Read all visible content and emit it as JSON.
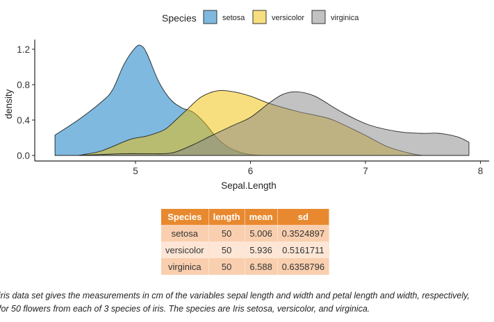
{
  "chart_data": {
    "type": "area",
    "subtype": "density",
    "xlabel": "Sepal.Length",
    "ylabel": "density",
    "xlim": [
      4.0,
      8.1
    ],
    "ylim": [
      -0.04,
      1.28
    ],
    "xticks": [
      5,
      6,
      7,
      8
    ],
    "yticks": [
      "0.0",
      "0.4",
      "0.8",
      "1.2"
    ],
    "grid": false,
    "legend": {
      "title": "Species",
      "position": "top"
    },
    "fill_alpha": 0.5,
    "series": [
      {
        "name": "setosa",
        "color": "#0073C2",
        "points": [
          [
            4.3,
            0.23
          ],
          [
            4.5,
            0.4
          ],
          [
            4.7,
            0.6
          ],
          [
            4.8,
            0.74
          ],
          [
            4.9,
            1.03
          ],
          [
            5.0,
            1.22
          ],
          [
            5.05,
            1.24
          ],
          [
            5.1,
            1.15
          ],
          [
            5.2,
            0.84
          ],
          [
            5.3,
            0.64
          ],
          [
            5.4,
            0.54
          ],
          [
            5.5,
            0.49
          ],
          [
            5.6,
            0.37
          ],
          [
            5.7,
            0.21
          ],
          [
            5.8,
            0.1
          ],
          [
            5.9,
            0.04
          ],
          [
            6.0,
            0.01
          ],
          [
            6.1,
            0.0
          ]
        ]
      },
      {
        "name": "versicolor",
        "color": "#EFC000",
        "points": [
          [
            4.5,
            0.0
          ],
          [
            4.7,
            0.05
          ],
          [
            4.95,
            0.18
          ],
          [
            5.1,
            0.22
          ],
          [
            5.25,
            0.29
          ],
          [
            5.35,
            0.4
          ],
          [
            5.45,
            0.52
          ],
          [
            5.57,
            0.66
          ],
          [
            5.71,
            0.73
          ],
          [
            5.85,
            0.72
          ],
          [
            6.0,
            0.67
          ],
          [
            6.16,
            0.59
          ],
          [
            6.4,
            0.5
          ],
          [
            6.58,
            0.45
          ],
          [
            6.72,
            0.4
          ],
          [
            6.98,
            0.24
          ],
          [
            7.19,
            0.1
          ],
          [
            7.4,
            0.02
          ],
          [
            7.5,
            0.0
          ]
        ]
      },
      {
        "name": "virginica",
        "color": "#868686",
        "points": [
          [
            4.5,
            0.0
          ],
          [
            4.7,
            0.01
          ],
          [
            4.9,
            0.02
          ],
          [
            5.1,
            0.02
          ],
          [
            5.25,
            0.02
          ],
          [
            5.35,
            0.04
          ],
          [
            5.5,
            0.12
          ],
          [
            5.67,
            0.23
          ],
          [
            5.85,
            0.34
          ],
          [
            6.0,
            0.43
          ],
          [
            6.16,
            0.59
          ],
          [
            6.28,
            0.69
          ],
          [
            6.4,
            0.72
          ],
          [
            6.56,
            0.67
          ],
          [
            6.78,
            0.5
          ],
          [
            7.02,
            0.35
          ],
          [
            7.28,
            0.27
          ],
          [
            7.48,
            0.25
          ],
          [
            7.64,
            0.25
          ],
          [
            7.8,
            0.21
          ],
          [
            7.9,
            0.15
          ]
        ]
      }
    ]
  },
  "table": {
    "headers": [
      "Species",
      "length",
      "mean",
      "sd"
    ],
    "rows": [
      [
        "setosa",
        "50",
        "5.006",
        "0.3524897"
      ],
      [
        "versicolor",
        "50",
        "5.936",
        "0.5161711"
      ],
      [
        "virginica",
        "50",
        "6.588",
        "0.6358796"
      ]
    ],
    "colors": {
      "header": "#E8892F",
      "row_odd": "#F9CFAF",
      "row_even": "#FDE6D5"
    }
  },
  "caption": {
    "line1": "iris data set gives the measurements in cm of the variables sepal length and width and petal length and width, respectively,",
    "line2": "for 50 flowers from each of 3 species of iris. The species are Iris setosa, versicolor, and virginica."
  }
}
